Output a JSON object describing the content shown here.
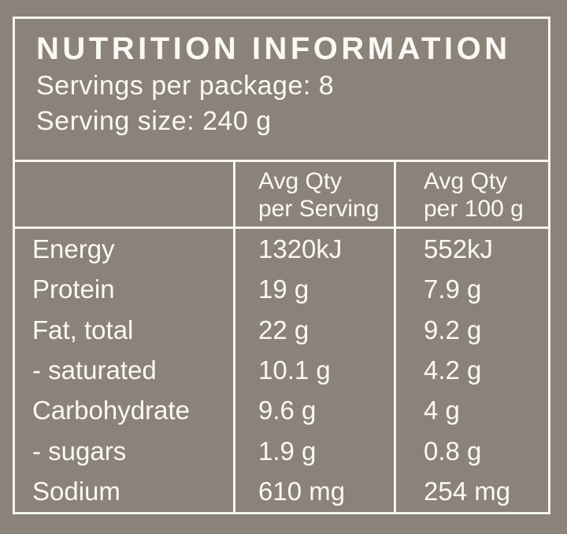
{
  "label": {
    "title": "NUTRITION INFORMATION",
    "servings_per_package": "Servings per package: 8",
    "serving_size": "Serving size: 240 g"
  },
  "table": {
    "columns": [
      {
        "line1": "",
        "line2": ""
      },
      {
        "line1": "Avg Qty",
        "line2": "per Serving"
      },
      {
        "line1": "Avg Qty",
        "line2": "per 100 g"
      }
    ],
    "rows": [
      {
        "nutrient": "Energy",
        "per_serving": "1320kJ",
        "per_100g": "552kJ"
      },
      {
        "nutrient": "Protein",
        "per_serving": "19 g",
        "per_100g": "7.9 g"
      },
      {
        "nutrient": "Fat, total",
        "per_serving": "22 g",
        "per_100g": "9.2 g"
      },
      {
        "nutrient": "- saturated",
        "per_serving": "10.1 g",
        "per_100g": "4.2 g"
      },
      {
        "nutrient": "Carbohydrate",
        "per_serving": "9.6 g",
        "per_100g": "4 g"
      },
      {
        "nutrient": "- sugars",
        "per_serving": "1.9 g",
        "per_100g": "0.8 g"
      },
      {
        "nutrient": "Sodium",
        "per_serving": "610 mg",
        "per_100g": "254 mg"
      }
    ]
  },
  "colors": {
    "background": "#8b8279",
    "line": "#f7f5f0",
    "text": "#faf8f4"
  }
}
